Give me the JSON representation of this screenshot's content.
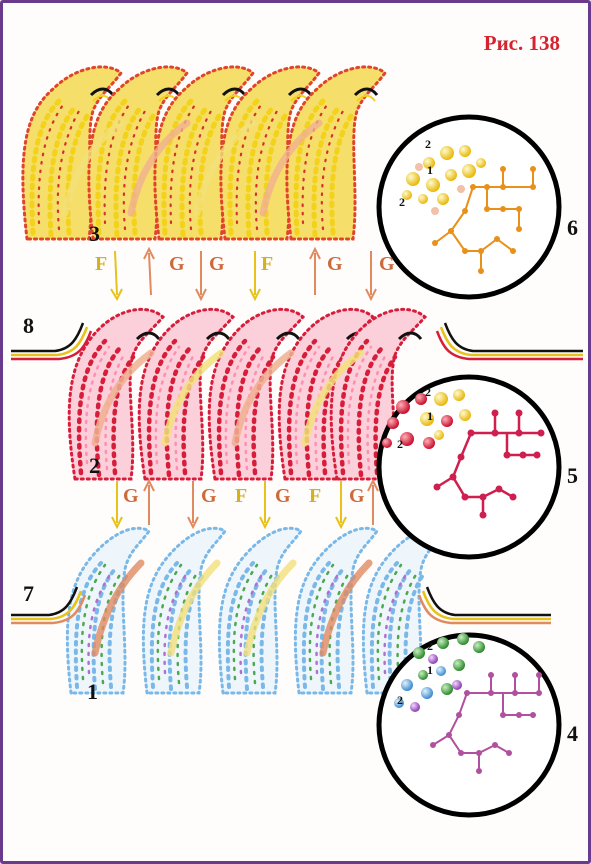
{
  "figure": {
    "title": "Рис. 138",
    "layer_labels": [
      "3",
      "2",
      "1"
    ],
    "side_labels": [
      "8",
      "7"
    ],
    "inset_labels": [
      "6",
      "5",
      "4"
    ],
    "inset_atom_labels": [
      "2",
      "1",
      "2"
    ],
    "transition_labels": {
      "upper": [
        "F",
        "G",
        "G",
        "F",
        "G",
        "G"
      ],
      "lower": [
        "G",
        "G",
        "F",
        "G",
        "F",
        "G"
      ]
    }
  },
  "colors": {
    "border": "#6a3a8c",
    "title": "#d4242f",
    "layer3_yellow": "#f2d21a",
    "layer3_red": "#e0442a",
    "layer2_red": "#d81d3a",
    "layer2_pink": "#ff8fb0",
    "layer1_blue": "#7ab8e8",
    "layer1_green": "#4ea84e",
    "layer1_violet": "#b070d0",
    "arrow_yellow": "#e6c21a",
    "arrow_orange": "#e08a60",
    "inset_orange": "#e8901a",
    "inset_crimson": "#cf1f4e",
    "inset_magenta": "#b0509e"
  }
}
